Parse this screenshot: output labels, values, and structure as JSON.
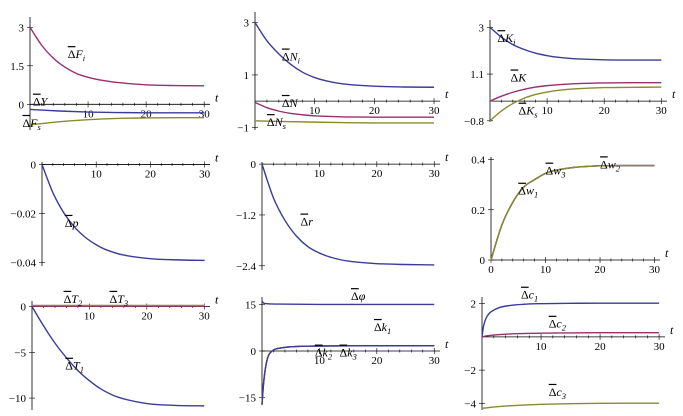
{
  "colors": {
    "blue": "#3b3c9a",
    "magenta": "#9a2f6f",
    "olive": "#8b8b2a"
  },
  "chart_data": [
    {
      "type": "line",
      "xlabel": "t",
      "xlim": [
        0,
        31
      ],
      "ylim": [
        -1.0,
        3.4
      ],
      "xticks": [
        10,
        20,
        30
      ],
      "xtick_labels": [
        "10",
        "20",
        "30"
      ],
      "yticks": [
        3,
        1.5,
        0
      ],
      "ytick_labels": [
        "3",
        "1.5",
        "0"
      ],
      "series": [
        {
          "name": "ΔF_i",
          "color": "magenta",
          "x": [
            0,
            2,
            4,
            6,
            8,
            10,
            12,
            15,
            20,
            25,
            30
          ],
          "y": [
            3.0,
            2.3,
            1.8,
            1.45,
            1.2,
            1.05,
            0.95,
            0.85,
            0.76,
            0.73,
            0.72
          ]
        },
        {
          "name": "ΔY",
          "color": "blue",
          "x": [
            0,
            5,
            10,
            15,
            20,
            25,
            30
          ],
          "y": [
            -0.2,
            -0.26,
            -0.3,
            -0.32,
            -0.33,
            -0.33,
            -0.33
          ]
        },
        {
          "name": "ΔF_s",
          "color": "olive",
          "x": [
            0,
            5,
            10,
            15,
            20,
            25,
            30
          ],
          "y": [
            -0.8,
            -0.68,
            -0.6,
            -0.55,
            -0.53,
            -0.52,
            -0.52
          ]
        }
      ],
      "annotations": [
        {
          "base": "Δ",
          "var": "F",
          "sub": "i",
          "x": 6.5,
          "y": 1.8
        },
        {
          "base": "Δ",
          "var": "Y",
          "sub": "",
          "x": 0.5,
          "y": -0.05
        },
        {
          "base": "Δ",
          "var": "F",
          "sub": "s",
          "x": -1.3,
          "y": -0.88
        }
      ]
    },
    {
      "type": "line",
      "xlabel": "t",
      "xlim": [
        0,
        31
      ],
      "ylim": [
        -1.1,
        3.4
      ],
      "xticks": [
        10,
        20,
        30
      ],
      "xtick_labels": [
        "10",
        "20",
        "30"
      ],
      "yticks": [
        3,
        1,
        -1
      ],
      "ytick_labels": [
        "3",
        "1",
        "−1"
      ],
      "series": [
        {
          "name": "ΔN_i",
          "color": "blue",
          "x": [
            0,
            2,
            4,
            6,
            8,
            10,
            12,
            15,
            20,
            25,
            30
          ],
          "y": [
            3.0,
            2.3,
            1.8,
            1.4,
            1.1,
            0.9,
            0.77,
            0.65,
            0.57,
            0.54,
            0.53
          ]
        },
        {
          "name": "ΔN",
          "color": "magenta",
          "x": [
            0,
            2,
            4,
            6,
            8,
            10,
            12,
            15,
            20,
            25,
            30
          ],
          "y": [
            -0.05,
            -0.25,
            -0.38,
            -0.47,
            -0.52,
            -0.56,
            -0.58,
            -0.6,
            -0.61,
            -0.61,
            -0.61
          ]
        },
        {
          "name": "ΔN_s",
          "color": "olive",
          "x": [
            0,
            5,
            10,
            15,
            20,
            25,
            30
          ],
          "y": [
            -0.75,
            -0.78,
            -0.8,
            -0.82,
            -0.83,
            -0.83,
            -0.83
          ]
        }
      ],
      "annotations": [
        {
          "base": "Δ",
          "var": "N",
          "sub": "i",
          "x": 4.5,
          "y": 1.55
        },
        {
          "base": "Δ",
          "var": "N",
          "sub": "",
          "x": 4.5,
          "y": -0.22
        },
        {
          "base": "Δ",
          "var": "N",
          "sub": "s",
          "x": 2.0,
          "y": -0.95
        }
      ]
    },
    {
      "type": "line",
      "xlabel": "t",
      "xlim": [
        0,
        31
      ],
      "ylim": [
        -0.85,
        3.3
      ],
      "xticks": [
        10,
        20,
        30
      ],
      "xtick_labels": [
        "10",
        "20",
        "30"
      ],
      "yticks": [
        3,
        1.1,
        -0.8
      ],
      "ytick_labels": [
        "3",
        "1.1",
        "−0.8"
      ],
      "series": [
        {
          "name": "ΔK_i",
          "color": "blue",
          "x": [
            0,
            2,
            4,
            6,
            8,
            10,
            12,
            15,
            20,
            25,
            30
          ],
          "y": [
            3.0,
            2.6,
            2.3,
            2.1,
            1.95,
            1.85,
            1.78,
            1.72,
            1.68,
            1.67,
            1.67
          ]
        },
        {
          "name": "ΔK",
          "color": "magenta",
          "x": [
            0,
            2,
            4,
            6,
            8,
            10,
            12,
            15,
            20,
            25,
            30
          ],
          "y": [
            0.0,
            0.2,
            0.36,
            0.48,
            0.57,
            0.63,
            0.67,
            0.71,
            0.74,
            0.75,
            0.75
          ]
        },
        {
          "name": "ΔK_s",
          "color": "olive",
          "x": [
            0,
            2,
            4,
            6,
            8,
            10,
            12,
            15,
            20,
            25,
            30
          ],
          "y": [
            -0.8,
            -0.4,
            -0.1,
            0.12,
            0.27,
            0.37,
            0.44,
            0.5,
            0.55,
            0.56,
            0.57
          ]
        }
      ],
      "annotations": [
        {
          "base": "Δ",
          "var": "K",
          "sub": "i",
          "x": 1.3,
          "y": 2.4
        },
        {
          "base": "Δ",
          "var": "K",
          "sub": "",
          "x": 3.6,
          "y": 0.8
        },
        {
          "base": "Δ",
          "var": "K",
          "sub": "s",
          "x": 5.0,
          "y": -0.55
        }
      ]
    },
    {
      "type": "line",
      "xlabel": "t",
      "xlim": [
        0,
        31
      ],
      "ylim": [
        -0.0415,
        0.001
      ],
      "xticks": [
        10,
        20,
        30
      ],
      "xtick_labels": [
        "10",
        "20",
        "30"
      ],
      "yticks": [
        0,
        -0.02,
        -0.04
      ],
      "ytick_labels": [
        "0",
        "−0.02",
        "−0.04"
      ],
      "series": [
        {
          "name": "Δp",
          "color": "blue",
          "x": [
            0,
            2,
            4,
            6,
            8,
            10,
            12,
            15,
            20,
            25,
            30
          ],
          "y": [
            0.0,
            -0.0115,
            -0.0197,
            -0.0256,
            -0.0298,
            -0.0328,
            -0.035,
            -0.037,
            -0.0385,
            -0.039,
            -0.0392
          ]
        }
      ],
      "annotations": [
        {
          "base": "Δ",
          "var": "p",
          "sub": "",
          "x": 4.2,
          "y": -0.0255
        }
      ]
    },
    {
      "type": "line",
      "xlabel": "t",
      "xlim": [
        0,
        31
      ],
      "ylim": [
        -2.5,
        0.05
      ],
      "xticks": [
        10,
        20,
        30
      ],
      "xtick_labels": [
        "10",
        "20",
        "30"
      ],
      "yticks": [
        0,
        -1.2,
        -2.4
      ],
      "ytick_labels": [
        "0",
        "−1.2",
        "−2.4"
      ],
      "series": [
        {
          "name": "Δr",
          "color": "blue",
          "x": [
            0,
            2,
            4,
            6,
            8,
            10,
            12,
            15,
            20,
            25,
            30
          ],
          "y": [
            0.0,
            -0.8,
            -1.33,
            -1.7,
            -1.95,
            -2.1,
            -2.2,
            -2.29,
            -2.35,
            -2.37,
            -2.38
          ]
        }
      ],
      "annotations": [
        {
          "base": "Δ",
          "var": "r",
          "sub": "",
          "x": 6.7,
          "y": -1.45
        }
      ]
    },
    {
      "type": "line",
      "xlabel": "t",
      "xlim": [
        0,
        31
      ],
      "ylim": [
        0,
        0.41
      ],
      "xticks": [
        0,
        10,
        20,
        30
      ],
      "xtick_labels": [
        "0",
        "10",
        "20",
        "30"
      ],
      "yticks": [
        0,
        0.2,
        0.4
      ],
      "ytick_labels": [
        "0",
        "0.2",
        "0.4"
      ],
      "series": [
        {
          "name": "Δw_1",
          "color": "magenta",
          "x": [
            0,
            2,
            4,
            6,
            8,
            10,
            12,
            15,
            18,
            20,
            25,
            30
          ],
          "y": [
            0.0,
            0.14,
            0.23,
            0.29,
            0.32,
            0.345,
            0.358,
            0.368,
            0.373,
            0.375,
            0.376,
            0.376
          ]
        },
        {
          "name": "Δw_2",
          "color": "blue",
          "x": [
            0,
            2,
            4,
            6,
            8,
            10,
            12,
            15,
            18,
            20,
            25,
            30
          ],
          "y": [
            0.0,
            0.14,
            0.23,
            0.29,
            0.32,
            0.345,
            0.358,
            0.368,
            0.373,
            0.375,
            0.376,
            0.376
          ]
        },
        {
          "name": "Δw_3",
          "color": "olive",
          "x": [
            0,
            2,
            4,
            6,
            8,
            10,
            12,
            15,
            18,
            20,
            25,
            30
          ],
          "y": [
            0.0,
            0.14,
            0.23,
            0.29,
            0.32,
            0.345,
            0.358,
            0.368,
            0.373,
            0.375,
            0.376,
            0.376
          ]
        }
      ],
      "annotations": [
        {
          "base": "Δ",
          "var": "w",
          "sub": "1",
          "x": 5.0,
          "y": 0.26
        },
        {
          "base": "Δ",
          "var": "w",
          "sub": "3",
          "x": 10.0,
          "y": 0.34
        },
        {
          "base": "Δ",
          "var": "w",
          "sub": "2",
          "x": 20.0,
          "y": 0.365
        }
      ]
    },
    {
      "type": "line",
      "xlabel": "t",
      "xlim": [
        0,
        31
      ],
      "ylim": [
        -11.3,
        0.6
      ],
      "xticks": [
        10,
        20,
        30
      ],
      "xtick_labels": [
        "10",
        "20",
        "30"
      ],
      "yticks": [
        0,
        -5,
        -10
      ],
      "ytick_labels": [
        "0",
        "−5",
        "−10"
      ],
      "series": [
        {
          "name": "ΔT_2",
          "color": "magenta",
          "x": [
            0,
            30
          ],
          "y": [
            0.05,
            0.05
          ]
        },
        {
          "name": "ΔT_3",
          "color": "olive",
          "x": [
            0,
            30
          ],
          "y": [
            0.12,
            0.12
          ]
        },
        {
          "name": "ΔT_1",
          "color": "blue",
          "x": [
            0,
            2,
            4,
            6,
            8,
            10,
            12,
            15,
            20,
            25,
            30
          ],
          "y": [
            0.0,
            -2.1,
            -4.0,
            -5.6,
            -7.0,
            -8.1,
            -9.0,
            -9.9,
            -10.6,
            -10.8,
            -10.85
          ]
        }
      ],
      "annotations": [
        {
          "base": "Δ",
          "var": "T",
          "sub": "2",
          "x": 5.5,
          "y": 0.4
        },
        {
          "base": "Δ",
          "var": "T",
          "sub": "3",
          "x": 13.5,
          "y": 0.4
        },
        {
          "base": "Δ",
          "var": "T",
          "sub": "1",
          "x": 5.8,
          "y": -6.9
        }
      ]
    },
    {
      "type": "line",
      "xlabel": "t",
      "xlim": [
        0,
        31
      ],
      "ylim": [
        -17.5,
        17.5
      ],
      "xticks": [
        10,
        20,
        30
      ],
      "xtick_labels": [
        "10",
        "20",
        "30"
      ],
      "yticks": [
        15,
        0,
        -15
      ],
      "ytick_labels": [
        "15",
        "0",
        "−15"
      ],
      "series": [
        {
          "name": "Δφ",
          "color": "blue",
          "x": [
            0,
            0.3,
            1,
            3,
            10,
            20,
            30
          ],
          "y": [
            16.2,
            15.5,
            15.3,
            15.2,
            15.1,
            15.1,
            15.1
          ]
        },
        {
          "name": "Δk_1",
          "color": "magenta",
          "x": [
            0,
            0.3,
            0.7,
            1.2,
            2,
            3,
            5,
            8,
            12,
            16,
            20,
            30
          ],
          "y": [
            -17.3,
            -10.0,
            -4.5,
            -1.2,
            0.3,
            0.9,
            1.35,
            1.55,
            1.65,
            1.7,
            1.7,
            1.7
          ]
        },
        {
          "name": "Δk_2",
          "color": "olive",
          "x": [
            0,
            0.3,
            0.7,
            1.2,
            2,
            3,
            5,
            8,
            12,
            16,
            20,
            30
          ],
          "y": [
            -17.3,
            -10.0,
            -4.5,
            -1.2,
            0.3,
            0.9,
            1.35,
            1.55,
            1.65,
            1.7,
            1.7,
            1.7
          ]
        },
        {
          "name": "Δk_3",
          "color": "blue",
          "x": [
            0,
            0.3,
            0.7,
            1.2,
            2,
            3,
            5,
            8,
            12,
            16,
            20,
            30
          ],
          "y": [
            -17.3,
            -10.0,
            -4.5,
            -1.2,
            0.3,
            0.9,
            1.35,
            1.55,
            1.65,
            1.7,
            1.7,
            1.7
          ]
        }
      ],
      "annotations": [
        {
          "base": "Δ",
          "var": "φ",
          "sub": "",
          "x": 15.5,
          "y": 16.5
        },
        {
          "base": "Δ",
          "var": "k",
          "sub": "1",
          "x": 19.5,
          "y": 6.5
        },
        {
          "base": "Δ",
          "var": "k",
          "sub": "2",
          "x": 9.2,
          "y": -1.8
        },
        {
          "base": "Δ",
          "var": "k",
          "sub": "3",
          "x": 13.5,
          "y": -1.8
        }
      ]
    },
    {
      "type": "line",
      "xlabel": "t",
      "xlim": [
        0,
        31
      ],
      "ylim": [
        -4.4,
        2.4
      ],
      "xticks": [
        10,
        20,
        30
      ],
      "xtick_labels": [
        "10",
        "20",
        "30"
      ],
      "yticks": [
        2,
        -2,
        -4
      ],
      "ytick_labels": [
        "2",
        "−2",
        "−4"
      ],
      "series": [
        {
          "name": "Δc_1",
          "color": "blue",
          "x": [
            0,
            0.3,
            0.8,
            1.5,
            3,
            5,
            8,
            10,
            15,
            20,
            30
          ],
          "y": [
            0.0,
            0.7,
            1.2,
            1.5,
            1.77,
            1.9,
            1.98,
            2.0,
            2.02,
            2.03,
            2.03
          ]
        },
        {
          "name": "Δc_2",
          "color": "magenta",
          "x": [
            0,
            1,
            3,
            6,
            10,
            15,
            20,
            30
          ],
          "y": [
            0.0,
            0.07,
            0.14,
            0.19,
            0.22,
            0.24,
            0.25,
            0.25
          ]
        },
        {
          "name": "Δc_3",
          "color": "olive",
          "x": [
            0,
            2,
            5,
            10,
            15,
            20,
            25,
            30
          ],
          "y": [
            -4.3,
            -4.22,
            -4.14,
            -4.06,
            -4.02,
            -4.0,
            -3.99,
            -3.99
          ]
        }
      ],
      "annotations": [
        {
          "base": "Δ",
          "var": "c",
          "sub": "1",
          "x": 6.6,
          "y": 2.3
        },
        {
          "base": "Δ",
          "var": "c",
          "sub": "2",
          "x": 11.3,
          "y": 0.55
        },
        {
          "base": "Δ",
          "var": "c",
          "sub": "3",
          "x": 11.3,
          "y": -3.55
        }
      ]
    }
  ]
}
